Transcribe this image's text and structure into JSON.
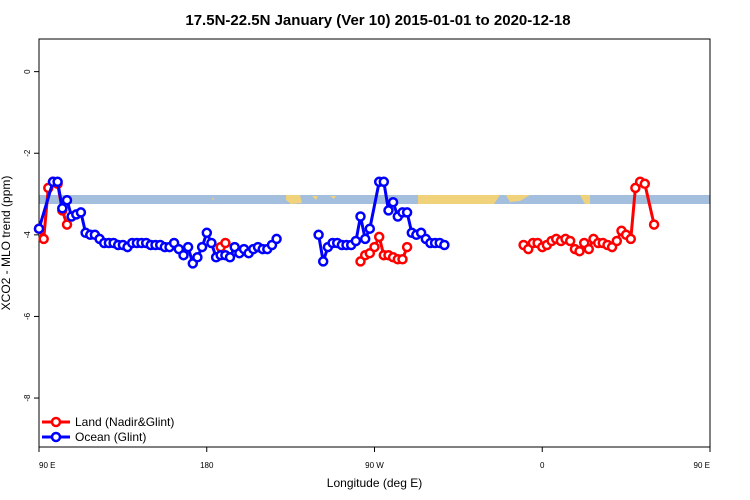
{
  "chart_data": {
    "type": "line",
    "title": "17.5N-22.5N January (Ver 10)   2015-01-01 to 2020-12-18",
    "xlabel": "Longitude (deg E)",
    "ylabel": "XCO2 - MLO trend (ppm)",
    "xlim": [
      90,
      450
    ],
    "ylim": [
      -9.2,
      0.8
    ],
    "x_ticks": [
      {
        "value": 90,
        "label": "90 E"
      },
      {
        "value": 180,
        "label": "180"
      },
      {
        "value": 270,
        "label": "90 W"
      },
      {
        "value": 360,
        "label": "0"
      },
      {
        "value": 450,
        "label": "90 E"
      },
      {
        "value": 540,
        "label": "180"
      }
    ],
    "y_ticks": [
      {
        "value": 0,
        "label": "0"
      },
      {
        "value": -2,
        "label": "-2"
      },
      {
        "value": -4,
        "label": "-4"
      },
      {
        "value": -6,
        "label": "-6"
      },
      {
        "value": -8,
        "label": "-8"
      }
    ],
    "legend_position": "bottom-left",
    "series": [
      {
        "name": "Land (Nadir&Glint)",
        "color": "#ff0000",
        "points": [
          [
            90,
            -3.85
          ],
          [
            92.5,
            -4.1
          ],
          [
            95,
            -2.85
          ],
          [
            97.5,
            -2.7
          ],
          [
            100,
            -2.75
          ],
          [
            102.5,
            -3.4
          ],
          [
            105,
            -3.75
          ],
          [
            187.5,
            -4.3
          ],
          [
            190,
            -4.2
          ],
          [
            262.5,
            -4.65
          ],
          [
            265,
            -4.5
          ],
          [
            267.5,
            -4.45
          ],
          [
            270,
            -4.3
          ],
          [
            272.5,
            -4.05
          ],
          [
            275,
            -4.5
          ],
          [
            277.5,
            -4.5
          ],
          [
            280,
            -4.55
          ],
          [
            282.5,
            -4.6
          ],
          [
            285,
            -4.6
          ],
          [
            287.5,
            -4.3
          ],
          [
            350,
            -4.25
          ],
          [
            352.5,
            -4.35
          ],
          [
            355,
            -4.2
          ],
          [
            357.5,
            -4.2
          ],
          [
            360,
            -4.3
          ],
          [
            362.5,
            -4.25
          ],
          [
            365,
            -4.15
          ],
          [
            367.5,
            -4.1
          ],
          [
            370,
            -4.15
          ],
          [
            372.5,
            -4.1
          ],
          [
            375,
            -4.15
          ],
          [
            377.5,
            -4.35
          ],
          [
            380,
            -4.4
          ],
          [
            382.5,
            -4.2
          ],
          [
            385,
            -4.35
          ],
          [
            387.5,
            -4.1
          ],
          [
            390,
            -4.2
          ],
          [
            392.5,
            -4.2
          ],
          [
            395,
            -4.25
          ],
          [
            397.5,
            -4.3
          ],
          [
            400,
            -4.15
          ],
          [
            402.5,
            -3.9
          ],
          [
            405,
            -4.0
          ],
          [
            407.5,
            -4.1
          ],
          [
            410,
            -2.85
          ],
          [
            412.5,
            -2.7
          ],
          [
            415,
            -2.75
          ],
          [
            420,
            -3.75
          ]
        ]
      },
      {
        "name": "Ocean (Glint)",
        "color": "#0000ff",
        "points": [
          [
            90,
            -3.85
          ],
          [
            97.5,
            -2.7
          ],
          [
            100,
            -2.7
          ],
          [
            102.5,
            -3.35
          ],
          [
            105,
            -3.15
          ],
          [
            107.5,
            -3.55
          ],
          [
            110,
            -3.5
          ],
          [
            112.5,
            -3.45
          ],
          [
            115,
            -3.95
          ],
          [
            117.5,
            -4.0
          ],
          [
            120,
            -4.0
          ],
          [
            122.5,
            -4.1
          ],
          [
            125,
            -4.2
          ],
          [
            127.5,
            -4.2
          ],
          [
            130,
            -4.2
          ],
          [
            132.5,
            -4.25
          ],
          [
            135,
            -4.25
          ],
          [
            137.5,
            -4.3
          ],
          [
            140,
            -4.2
          ],
          [
            142.5,
            -4.2
          ],
          [
            145,
            -4.2
          ],
          [
            147.5,
            -4.2
          ],
          [
            150,
            -4.25
          ],
          [
            152.5,
            -4.25
          ],
          [
            155,
            -4.25
          ],
          [
            157.5,
            -4.3
          ],
          [
            160,
            -4.3
          ],
          [
            162.5,
            -4.2
          ],
          [
            165,
            -4.35
          ],
          [
            167.5,
            -4.5
          ],
          [
            170,
            -4.3
          ],
          [
            172.5,
            -4.7
          ],
          [
            175,
            -4.55
          ],
          [
            177.5,
            -4.3
          ],
          [
            180,
            -3.95
          ],
          [
            182.5,
            -4.2
          ],
          [
            185,
            -4.55
          ],
          [
            187.5,
            -4.5
          ],
          [
            190,
            -4.5
          ],
          [
            192.5,
            -4.55
          ],
          [
            195,
            -4.3
          ],
          [
            197.5,
            -4.45
          ],
          [
            200,
            -4.35
          ],
          [
            202.5,
            -4.45
          ],
          [
            205,
            -4.35
          ],
          [
            207.5,
            -4.3
          ],
          [
            210,
            -4.35
          ],
          [
            212.5,
            -4.35
          ],
          [
            215,
            -4.25
          ],
          [
            217.5,
            -4.1
          ],
          [
            240,
            -4.0
          ],
          [
            242.5,
            -4.65
          ],
          [
            245,
            -4.3
          ],
          [
            247.5,
            -4.2
          ],
          [
            250,
            -4.2
          ],
          [
            252.5,
            -4.25
          ],
          [
            255,
            -4.25
          ],
          [
            257.5,
            -4.25
          ],
          [
            260,
            -4.15
          ],
          [
            262.5,
            -3.55
          ],
          [
            265,
            -4.1
          ],
          [
            267.5,
            -3.85
          ],
          [
            272.5,
            -2.7
          ],
          [
            275,
            -2.7
          ],
          [
            277.5,
            -3.4
          ],
          [
            280,
            -3.2
          ],
          [
            282.5,
            -3.55
          ],
          [
            285,
            -3.45
          ],
          [
            287.5,
            -3.45
          ],
          [
            290,
            -3.95
          ],
          [
            292.5,
            -4.0
          ],
          [
            295,
            -3.95
          ],
          [
            297.5,
            -4.1
          ],
          [
            300,
            -4.2
          ],
          [
            302.5,
            -4.2
          ],
          [
            305,
            -4.2
          ],
          [
            307.5,
            -4.25
          ]
        ]
      }
    ]
  }
}
